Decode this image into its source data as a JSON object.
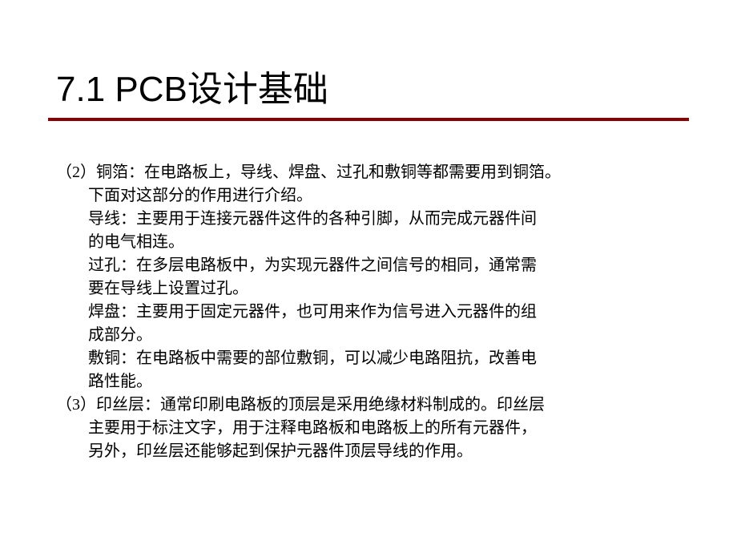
{
  "slide": {
    "title": "7.1 PCB设计基础",
    "colors": {
      "underline": "#8b0000",
      "text": "#000000",
      "background": "#ffffff"
    },
    "typography": {
      "title_fontsize": 44,
      "body_fontsize": 20,
      "title_font": "Arial, SimHei",
      "body_font": "SimSun"
    },
    "content": {
      "item2_line1": "（2）铜箔：在电路板上，导线、焊盘、过孔和敷铜等都需要用到铜箔。",
      "item2_line2": "下面对这部分的作用进行介绍。",
      "sub_daoxian_line1": "导线：主要用于连接元器件这件的各种引脚，从而完成元器件间",
      "sub_daoxian_line2": "的电气相连。",
      "sub_guokong_line1": "过孔：在多层电路板中，为实现元器件之间信号的相同，通常需",
      "sub_guokong_line2": "要在导线上设置过孔。",
      "sub_hanpan_line1": "焊盘：主要用于固定元器件，也可用来作为信号进入元器件的组",
      "sub_hanpan_line2": "成部分。",
      "sub_futong_line1": "敷铜：在电路板中需要的部位敷铜，可以减少电路阻抗，改善电",
      "sub_futong_line2": "路性能。",
      "item3_line1": "（3）印丝层：通常印刷电路板的顶层是采用绝缘材料制成的。印丝层",
      "item3_line2": "主要用于标注文字，用于注释电路板和电路板上的所有元器件，",
      "item3_line3": "另外，印丝层还能够起到保护元器件顶层导线的作用。"
    }
  }
}
